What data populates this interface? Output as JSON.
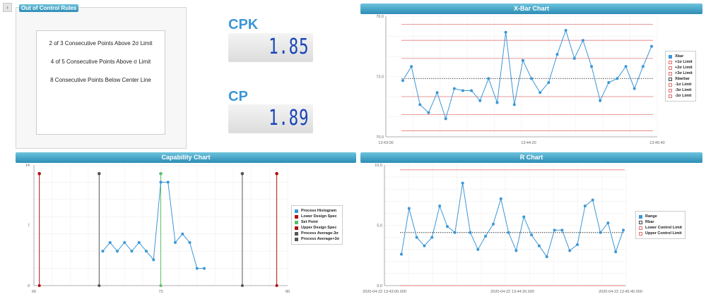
{
  "ooc": {
    "expand_symbol": "›",
    "title": "Out of Control Rules",
    "rules": [
      "2 of 3 Consecutive Points Above 2σ Limit",
      "4 of 5 Consecutive Points Above σ Limit",
      "8 Consecutive Points Below Center Line"
    ]
  },
  "kpis": {
    "cpk_label": "CPK",
    "cpk_value": "1.85",
    "cp_label": "CP",
    "cp_value": "1.89"
  },
  "xbar": {
    "title": "X-Bar Chart",
    "legend": [
      {
        "label": "Xbar",
        "color": "#3b97d6",
        "filled": true
      },
      {
        "label": "+1σ Limit",
        "color": "#e07070",
        "filled": false
      },
      {
        "label": "+2σ Limit",
        "color": "#e07070",
        "filled": false
      },
      {
        "label": "+3σ Limit",
        "color": "#e07070",
        "filled": false
      },
      {
        "label": "Xbarbar",
        "color": "#444444",
        "filled": false
      },
      {
        "label": "-1σ Limit",
        "color": "#e07070",
        "filled": false
      },
      {
        "label": "-3σ Limit",
        "color": "#e07070",
        "filled": false
      },
      {
        "label": "-2σ Limit",
        "color": "#e07070",
        "filled": false
      }
    ]
  },
  "cap": {
    "title": "Capability Chart",
    "legend": [
      {
        "label": "Process Histogram",
        "color": "#3b97d6",
        "filled": true
      },
      {
        "label": "Lower Design Spec",
        "color": "#b01010",
        "filled": true
      },
      {
        "label": "Set Point",
        "color": "#5cc06a",
        "filled": true
      },
      {
        "label": "Upper Design Spec",
        "color": "#b01010",
        "filled": true
      },
      {
        "label": "Process Average-3σ",
        "color": "#555555",
        "filled": true
      },
      {
        "label": "Process Average+3σ",
        "color": "#555555",
        "filled": true
      }
    ]
  },
  "rchart": {
    "title": "R Chart",
    "legend": [
      {
        "label": "Range",
        "color": "#3b97d6",
        "filled": true
      },
      {
        "label": "Rbar",
        "color": "#444444",
        "filled": false
      },
      {
        "label": "Lower Control Limit",
        "color": "#e07070",
        "filled": false
      },
      {
        "label": "Upper Control Limit",
        "color": "#e07070",
        "filled": false
      }
    ]
  },
  "chart_data": [
    {
      "type": "line",
      "title": "X-Bar Chart",
      "ylim": [
        70.0,
        76.0
      ],
      "yticks": [
        "76.0",
        "73.0",
        "70.0"
      ],
      "xticks": [
        "13:43:00",
        "13:44:20",
        "13:45:40"
      ],
      "series": [
        {
          "name": "Xbar",
          "values": [
            72.8,
            73.5,
            71.6,
            71.2,
            72.2,
            70.9,
            72.4,
            72.3,
            72.3,
            71.8,
            72.9,
            71.7,
            75.2,
            71.6,
            73.8,
            72.9,
            72.2,
            72.7,
            74.1,
            75.3,
            73.9,
            74.8,
            73.5,
            71.8,
            72.7,
            72.9,
            73.5,
            72.4,
            73.5,
            74.5
          ]
        },
        {
          "name": "+1σ Limit",
          "values": [
            73.9
          ]
        },
        {
          "name": "+2σ Limit",
          "values": [
            74.8
          ]
        },
        {
          "name": "+3σ Limit",
          "values": [
            75.6
          ]
        },
        {
          "name": "Xbarbar",
          "values": [
            72.9
          ]
        },
        {
          "name": "-1σ Limit",
          "values": [
            72.0
          ]
        },
        {
          "name": "-2σ Limit",
          "values": [
            71.1
          ]
        },
        {
          "name": "-3σ Limit",
          "values": [
            70.3
          ]
        }
      ]
    },
    {
      "type": "line",
      "title": "Capability Chart",
      "xlim": [
        66,
        80
      ],
      "ylim": [
        0,
        14
      ],
      "xticks": [
        "66",
        "73",
        "80"
      ],
      "yticks": [
        "14",
        "7",
        "0"
      ],
      "series": [
        {
          "name": "Process Histogram",
          "x": [
            69.8,
            70.2,
            70.6,
            71.0,
            71.4,
            71.8,
            72.2,
            72.6,
            73.0,
            73.4,
            73.8,
            74.2,
            74.6,
            75.0,
            75.4
          ],
          "values": [
            4,
            5,
            4,
            5,
            4,
            5,
            4,
            3,
            12,
            12,
            5,
            6,
            5,
            2,
            2
          ]
        },
        {
          "name": "Lower Design Spec",
          "x": [
            66.3
          ]
        },
        {
          "name": "Process Average-3σ",
          "x": [
            69.6
          ]
        },
        {
          "name": "Set Point",
          "x": [
            73.0
          ]
        },
        {
          "name": "Process Average+3σ",
          "x": [
            77.5
          ]
        },
        {
          "name": "Upper Design Spec",
          "x": [
            79.4
          ]
        }
      ]
    },
    {
      "type": "line",
      "title": "R Chart",
      "ylim": [
        0.0,
        10.0
      ],
      "yticks": [
        "10.0",
        "5.0",
        "0.0"
      ],
      "xticks": [
        "2020-04-22 13:43:00.000",
        "2020-04-22 13:44:20.000",
        "2020-04-22 13:45:40.000"
      ],
      "series": [
        {
          "name": "Range",
          "values": [
            2.6,
            6.4,
            4.0,
            3.3,
            4.0,
            6.6,
            4.9,
            4.4,
            8.5,
            4.4,
            3.0,
            4.1,
            5.1,
            7.2,
            4.4,
            2.9,
            5.7,
            4.2,
            3.3,
            2.4,
            4.6,
            4.6,
            2.9,
            3.4,
            6.6,
            7.1,
            4.4,
            5.2,
            2.8,
            4.6
          ]
        },
        {
          "name": "Rbar",
          "values": [
            4.4
          ]
        },
        {
          "name": "Lower Control Limit",
          "values": [
            0.0
          ]
        },
        {
          "name": "Upper Control Limit",
          "values": [
            9.6
          ]
        }
      ]
    }
  ]
}
